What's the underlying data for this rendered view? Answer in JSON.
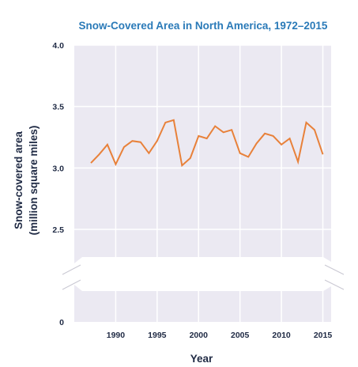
{
  "colors": {
    "title": "#2a7ab8",
    "axis_text": "#1f2a44",
    "plot_background": "#ebe9f2",
    "grid": "#ffffff",
    "line": "#e8813a"
  },
  "chart_data": {
    "type": "line",
    "title": "Snow-Covered Area in North America, 1972–2015",
    "xlabel": "Year",
    "ylabel_line1": "Snow-covered area",
    "ylabel_line2": "(million square miles)",
    "xlim": [
      1985,
      2016
    ],
    "ylim": [
      0,
      4.0
    ],
    "axis_break": {
      "between": [
        0,
        2.5
      ]
    },
    "x_ticks": [
      1990,
      1995,
      2000,
      2005,
      2010,
      2015
    ],
    "x_tick_labels": [
      "1990",
      "1995",
      "2000",
      "2005",
      "2010",
      "2015"
    ],
    "y_ticks": [
      0,
      2.5,
      3.0,
      3.5,
      4.0
    ],
    "y_tick_labels": [
      "0",
      "2.5",
      "3.0",
      "3.5",
      "4.0"
    ],
    "grid": true,
    "series": [
      {
        "x": [
          1987,
          1988,
          1989,
          1990,
          1991,
          1992,
          1993,
          1994,
          1995,
          1996,
          1997,
          1998,
          1999,
          2000,
          2001,
          2002,
          2003,
          2004,
          2005,
          2006,
          2007,
          2008,
          2009,
          2010,
          2011,
          2012,
          2013,
          2014,
          2015
        ],
        "values": [
          3.04,
          3.11,
          3.19,
          3.03,
          3.17,
          3.22,
          3.21,
          3.12,
          3.22,
          3.37,
          3.39,
          3.02,
          3.08,
          3.26,
          3.24,
          3.34,
          3.29,
          3.31,
          3.12,
          3.09,
          3.2,
          3.28,
          3.26,
          3.19,
          3.24,
          3.05,
          3.37,
          3.31,
          3.11
        ]
      }
    ]
  }
}
